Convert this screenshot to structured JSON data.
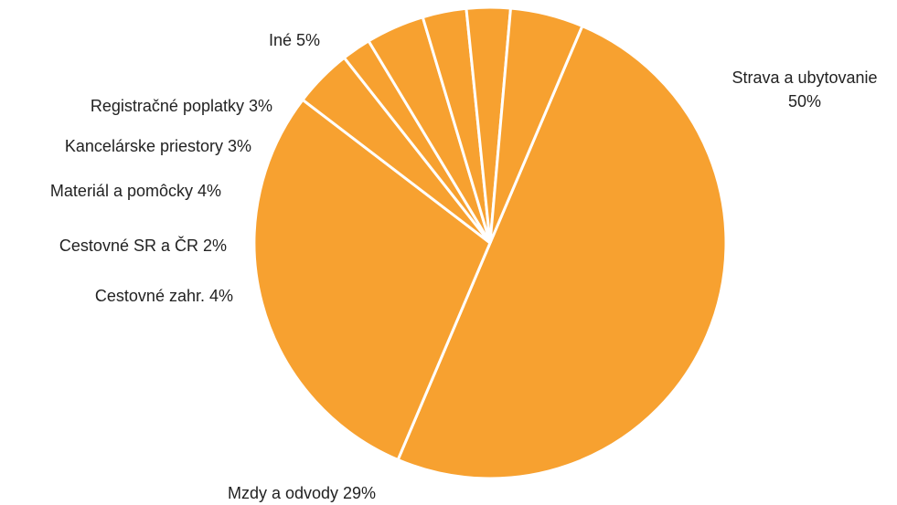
{
  "chart_data": {
    "type": "pie",
    "slice_color": "#F7A130",
    "slices": [
      {
        "label": "Strava a ubytovanie",
        "value": 50,
        "display": [
          "Strava a ubytovanie",
          "50%"
        ],
        "anchor": "middle"
      },
      {
        "label": "Mzdy a odvody",
        "value": 29,
        "display": [
          "Mzdy a odvody 29%"
        ],
        "anchor": "middle"
      },
      {
        "label": "Cestovné zahr.",
        "value": 4,
        "display": [
          "Cestovné zahr. 4%"
        ],
        "anchor": "end"
      },
      {
        "label": "Cestovné SR a ČR",
        "value": 2,
        "display": [
          "Cestovné SR a ČR 2%"
        ],
        "anchor": "end"
      },
      {
        "label": "Materiál a pomôcky",
        "value": 4,
        "display": [
          "Materiál a pomôcky 4%"
        ],
        "anchor": "end"
      },
      {
        "label": "Kancelárske priestory",
        "value": 3,
        "display": [
          "Kancelárske priestory 3%"
        ],
        "anchor": "end"
      },
      {
        "label": "Registračné poplatky",
        "value": 3,
        "display": [
          "Registračné poplatky 3%"
        ],
        "anchor": "end"
      },
      {
        "label": "Iné",
        "value": 5,
        "display": [
          "Iné 5%"
        ],
        "anchor": "end"
      }
    ]
  }
}
